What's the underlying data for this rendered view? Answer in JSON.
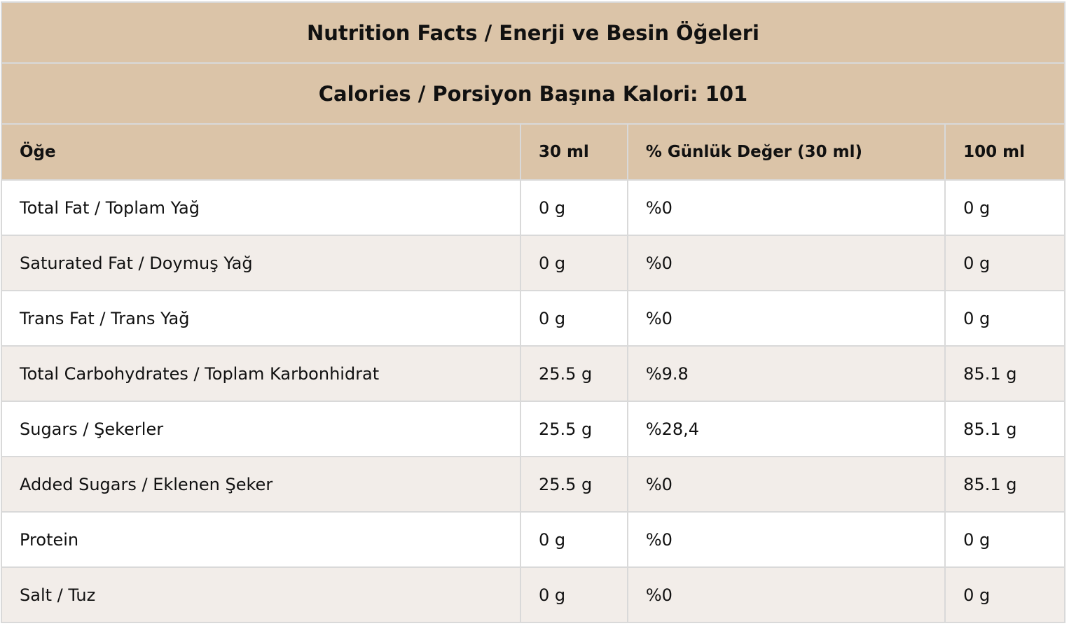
{
  "table": {
    "title": "Nutrition Facts / Enerji ve Besin Öğeleri",
    "subtitle": "Calories / Porsiyon Başına Kalori: 101",
    "header": [
      "Öğe",
      "30 ml",
      "% Günlük Değer (30 ml)",
      "100 ml"
    ],
    "rows": [
      [
        "Total Fat / Toplam Yağ",
        "0 g",
        "%0",
        "0 g"
      ],
      [
        "Saturated Fat / Doymuş Yağ",
        "0 g",
        "%0",
        "0 g"
      ],
      [
        "Trans Fat / Trans Yağ",
        "0 g",
        "%0",
        "0 g"
      ],
      [
        "Total Carbohydrates / Toplam Karbonhidrat",
        "25.5 g",
        "%9.8",
        "85.1 g"
      ],
      [
        "Sugars / Şekerler",
        "25.5 g",
        "%28,4",
        "85.1 g"
      ],
      [
        "Added Sugars / Eklenen Şeker",
        "25.5 g",
        "%0",
        "85.1 g"
      ],
      [
        "Protein",
        "0 g",
        "%0",
        "0 g"
      ],
      [
        "Salt / Tuz",
        "0 g",
        "%0",
        "0 g"
      ]
    ]
  }
}
